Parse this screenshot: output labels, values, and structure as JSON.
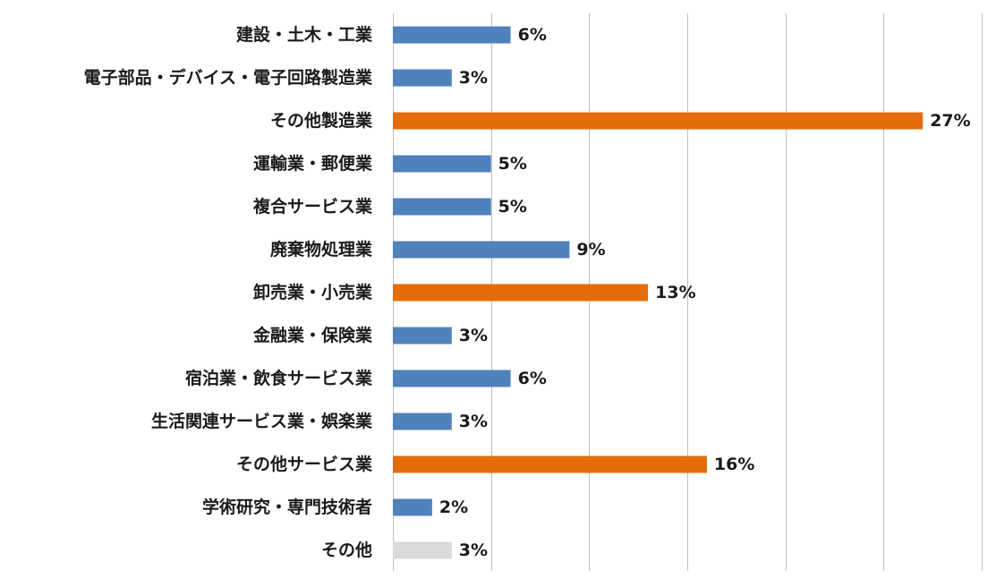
{
  "chart_data": {
    "type": "bar",
    "orientation": "horizontal",
    "categories": [
      "建設・土木・工業",
      "電子部品・デバイス・電子回路製造業",
      "その他製造業",
      "運輸業・郵便業",
      "複合サービス業",
      "廃棄物処理業",
      "卸売業・小売業",
      "金融業・保険業",
      "宿泊業・飲食サービス業",
      "生活関連サービス業・娯楽業",
      "その他サービス業",
      "学術研究・専門技術者",
      "その他"
    ],
    "values": [
      6,
      3,
      27,
      5,
      5,
      9,
      13,
      3,
      6,
      3,
      16,
      2,
      3
    ],
    "value_labels": [
      "6%",
      "3%",
      "27%",
      "5%",
      "5%",
      "9%",
      "13%",
      "3%",
      "6%",
      "3%",
      "16%",
      "2%",
      "3%"
    ],
    "bar_colors": [
      "#4f81bd",
      "#4f81bd",
      "#e36c09",
      "#4f81bd",
      "#4f81bd",
      "#4f81bd",
      "#e36c09",
      "#4f81bd",
      "#4f81bd",
      "#4f81bd",
      "#e36c09",
      "#4f81bd",
      "#d9d9d9"
    ],
    "xlim": [
      0,
      30
    ],
    "x_gridline_step": 5,
    "grid": true,
    "title": "",
    "xlabel": "",
    "ylabel": ""
  }
}
